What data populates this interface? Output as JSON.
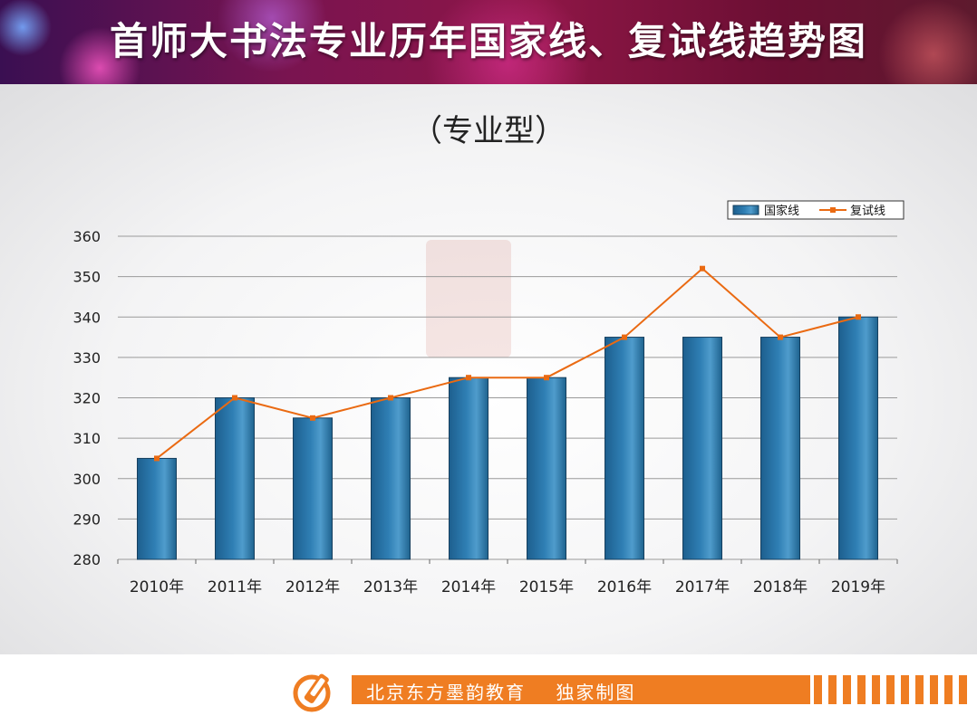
{
  "header": {
    "title": "首师大书法专业历年国家线、复试线趋势图"
  },
  "footer": {
    "text": "北京东方墨韵教育    独家制图"
  },
  "colors": {
    "bar": "#2f7fb4",
    "line": "#ea6a12",
    "accent": "#ef7d22"
  },
  "chart_data": {
    "type": "bar",
    "subtitle": "（专业型）",
    "categories": [
      "2010年",
      "2011年",
      "2012年",
      "2013年",
      "2014年",
      "2015年",
      "2016年",
      "2017年",
      "2018年",
      "2019年"
    ],
    "series": [
      {
        "name": "国家线",
        "type": "bar",
        "values": [
          305,
          320,
          315,
          320,
          325,
          325,
          335,
          335,
          335,
          340
        ]
      },
      {
        "name": "复试线",
        "type": "line",
        "values": [
          305,
          320,
          315,
          320,
          325,
          325,
          335,
          352,
          335,
          340
        ]
      }
    ],
    "ylim": [
      280,
      360
    ],
    "yticks": [
      280,
      290,
      300,
      310,
      320,
      330,
      340,
      350,
      360
    ],
    "grid": true,
    "legend": "top-right"
  }
}
